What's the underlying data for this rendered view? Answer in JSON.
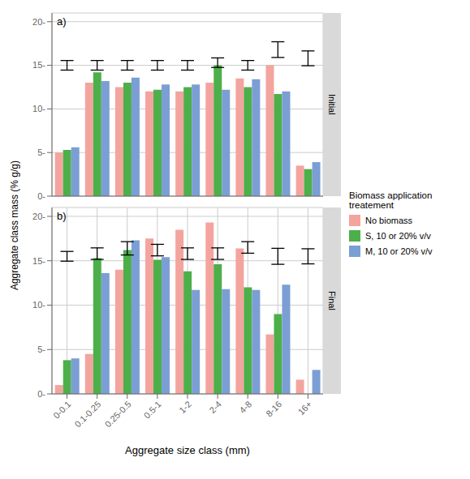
{
  "chart_data": [
    {
      "type": "bar",
      "title": "Initial",
      "annotations": [
        "a)"
      ],
      "ylabel": "Aggregate class mass (% g/g)",
      "legend_title": "Biomass application\ntreatement",
      "legend": "right",
      "grid": true,
      "tick_labels": "y",
      "categories": [
        "0-0.1",
        "0.1-0.25",
        "0.25-0.5",
        "0.5-1",
        "1-2",
        "2-4",
        "4-8",
        "8-16",
        "16+"
      ],
      "series": [
        {
          "name": "No biomass",
          "color": "#F4A49E",
          "values": [
            5.0,
            13.0,
            12.5,
            12.0,
            12.0,
            13.0,
            13.5,
            15.0,
            3.5
          ]
        },
        {
          "name": "S, 10 or 20% v/v",
          "color": "#4DAF4A",
          "values": [
            5.3,
            14.2,
            13.0,
            12.2,
            12.5,
            15.0,
            12.5,
            11.7,
            3.1
          ]
        },
        {
          "name": "M, 10 or 20% v/v",
          "color": "#7B9FD4",
          "values": [
            5.6,
            13.2,
            13.6,
            12.8,
            12.8,
            12.2,
            13.4,
            12.0,
            3.9
          ]
        }
      ],
      "error_bar_centers": [
        15.0,
        15.0,
        15.0,
        15.0,
        15.0,
        15.3,
        15.0,
        16.8,
        15.8
      ],
      "error_bar_halves": [
        0.55,
        0.55,
        0.55,
        0.55,
        0.55,
        0.55,
        0.55,
        0.9,
        0.85
      ],
      "ylim": [
        0,
        21
      ],
      "yticks": [
        {
          "value": 0,
          "label": "0-"
        },
        {
          "value": 5,
          "label": "5-"
        },
        {
          "value": 10,
          "label": "10-"
        },
        {
          "value": 15,
          "label": "15-"
        },
        {
          "value": 20,
          "label": "20-"
        }
      ]
    },
    {
      "type": "bar",
      "title": "Final",
      "annotations": [
        "b)"
      ],
      "xlabel": "Aggregate size class (mm)",
      "grid": true,
      "categories": [
        "0-0.1",
        "0.1-0.25",
        "0.25-0.5",
        "0.5-1",
        "1-2",
        "2-4",
        "4-8",
        "8-16",
        "16+"
      ],
      "series": [
        {
          "name": "No biomass",
          "color": "#F4A49E",
          "values": [
            1.0,
            4.5,
            14.0,
            17.5,
            18.5,
            19.3,
            16.4,
            6.7,
            1.6
          ]
        },
        {
          "name": "S, 10 or 20% v/v",
          "color": "#4DAF4A",
          "values": [
            3.8,
            15.3,
            16.2,
            15.1,
            13.8,
            14.6,
            12.0,
            9.0,
            0.0
          ]
        },
        {
          "name": "M, 10 or 20% v/v",
          "color": "#7B9FD4",
          "values": [
            4.0,
            13.6,
            17.3,
            15.4,
            11.7,
            11.8,
            11.7,
            12.3,
            2.7
          ]
        }
      ],
      "error_bar_centers": [
        15.5,
        15.8,
        16.4,
        16.2,
        15.8,
        15.8,
        16.5,
        15.5,
        15.5
      ],
      "error_bar_halves": [
        0.55,
        0.65,
        0.75,
        0.65,
        0.65,
        0.65,
        0.65,
        0.9,
        0.85
      ],
      "ylim": [
        0,
        21
      ],
      "yticks": [
        {
          "value": 0,
          "label": "0-"
        },
        {
          "value": 5,
          "label": "5-"
        },
        {
          "value": 10,
          "label": "10-"
        },
        {
          "value": 15,
          "label": "15-"
        },
        {
          "value": 20,
          "label": "20-"
        }
      ]
    }
  ]
}
